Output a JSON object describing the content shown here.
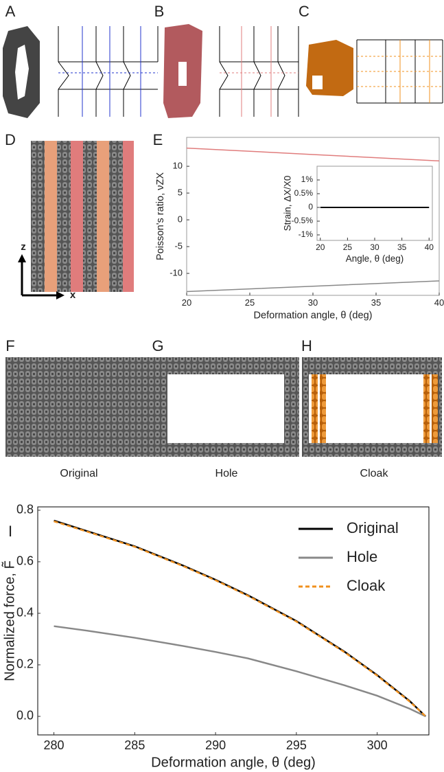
{
  "panels": {
    "letters": [
      "A",
      "B",
      "C",
      "D",
      "E",
      "F",
      "G",
      "H",
      "I"
    ],
    "labels": [
      "Original",
      "Hole",
      "Cloak"
    ],
    "axes": [
      "z",
      "x"
    ]
  },
  "chart_data": [
    {
      "type": "line",
      "xlabel": "Deformation angle, θ (deg)",
      "ylabel": "Poisson's ratio, νZX",
      "x": [
        20,
        25,
        30,
        35,
        40
      ],
      "xlim": [
        20,
        40
      ],
      "xticks": [
        20,
        25,
        30,
        35,
        40
      ],
      "ylim": [
        -14.1,
        15.4
      ],
      "yticks": [
        10,
        5,
        0,
        -5,
        -10
      ],
      "series": [
        {
          "color": "#e07c7c",
          "values": [
            13.4,
            12.8,
            12.2,
            11.6,
            11.0
          ]
        },
        {
          "color": "#888888",
          "values": [
            -13.4,
            -12.9,
            -12.4,
            -11.9,
            -11.4
          ]
        }
      ]
    },
    {
      "type": "line",
      "xlabel": "Angle, θ (deg)",
      "ylabel": "Strain, ΔX/X0",
      "x": [
        20,
        25,
        30,
        35,
        40
      ],
      "xlim": [
        19.4,
        40.6
      ],
      "xticks": [
        20,
        25,
        30,
        35,
        40
      ],
      "ylim": [
        -1.2,
        1.5
      ],
      "yticks": [
        {
          "value": 1,
          "label": "1%"
        },
        {
          "value": 0.5,
          "label": "0.5%"
        },
        0,
        {
          "value": -0.5,
          "label": "-0.5%"
        },
        {
          "value": -1,
          "label": "-1%"
        }
      ],
      "series": [
        {
          "color": "#000000",
          "values": [
            0,
            0,
            0,
            0,
            0
          ]
        }
      ]
    },
    {
      "type": "line",
      "xlabel": "Deformation angle, θ (deg)",
      "ylabel": "Normalized force, F̃",
      "x": [
        280,
        282,
        285,
        288,
        290,
        292,
        295,
        298,
        300,
        302,
        303
      ],
      "xlim": [
        279,
        303.2
      ],
      "xticks": [
        280,
        285,
        290,
        295,
        300
      ],
      "ylim": [
        -0.072,
        0.813
      ],
      "yticks": [
        0.8,
        0.6,
        0.4,
        0.2,
        {
          "value": 0,
          "label": "0.0"
        }
      ],
      "legend": "upper right",
      "series": [
        {
          "name": "Original",
          "color": "#000000",
          "linestyle": "solid",
          "values": [
            0.76,
            0.72,
            0.66,
            0.585,
            0.53,
            0.47,
            0.37,
            0.25,
            0.16,
            0.06,
            0
          ]
        },
        {
          "name": "Hole",
          "color": "#888888",
          "linestyle": "solid",
          "values": [
            0.35,
            0.333,
            0.305,
            0.273,
            0.25,
            0.225,
            0.175,
            0.12,
            0.08,
            0.03,
            0
          ]
        },
        {
          "name": "Cloak",
          "color": "#f0901e",
          "linestyle": "dashed",
          "values": [
            0.757,
            0.718,
            0.658,
            0.583,
            0.528,
            0.468,
            0.368,
            0.248,
            0.158,
            0.058,
            0
          ]
        }
      ]
    }
  ]
}
